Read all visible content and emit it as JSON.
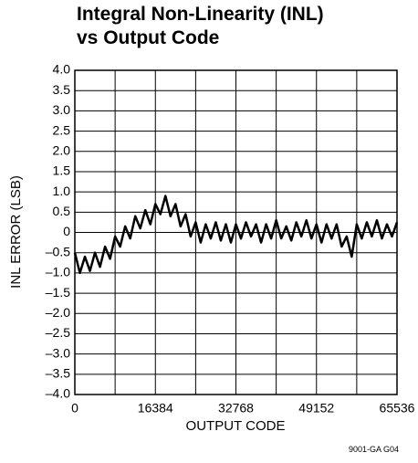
{
  "chart_data": {
    "type": "line",
    "title": [
      "Integral Non-Linearity (INL)",
      "vs Output Code"
    ],
    "xlabel": "OUTPUT CODE",
    "ylabel": "INL ERROR (LSB)",
    "footnote": "9001-GA G04",
    "xlim": [
      0,
      65536
    ],
    "ylim": [
      -4,
      4
    ],
    "xticks": [
      0,
      16384,
      32768,
      49152,
      65536
    ],
    "xgridlines": [
      0,
      8192,
      16384,
      24576,
      32768,
      40960,
      49152,
      57344,
      65536
    ],
    "yticks": [
      {
        "value": 4,
        "label": "4.0"
      },
      {
        "value": 3.5,
        "label": "3.5"
      },
      {
        "value": 3,
        "label": "3.0"
      },
      {
        "value": 2.5,
        "label": "2.5"
      },
      {
        "value": 2,
        "label": "2.0"
      },
      {
        "value": 1.5,
        "label": "1.5"
      },
      {
        "value": 1,
        "label": "1.0"
      },
      {
        "value": 0.5,
        "label": "0.5"
      },
      0,
      {
        "value": -0.5,
        "label": "–0.5"
      },
      {
        "value": -1,
        "label": "–1.0"
      },
      {
        "value": -1.5,
        "label": "–1.5"
      },
      {
        "value": -2,
        "label": "–2.0"
      },
      {
        "value": -2.5,
        "label": "–2.5"
      },
      {
        "value": -3,
        "label": "–3.0"
      },
      {
        "value": -3.5,
        "label": "–3.5"
      },
      {
        "value": -4,
        "label": "–4.0"
      }
    ],
    "grid": true,
    "series": [
      {
        "color": "#000000",
        "x": [
          0,
          1024,
          2048,
          3072,
          4096,
          5120,
          6144,
          7168,
          8192,
          9216,
          10240,
          11264,
          12288,
          13312,
          14336,
          15360,
          16384,
          17408,
          18432,
          19456,
          20480,
          21504,
          22528,
          23552,
          24576,
          25600,
          26624,
          27648,
          28672,
          29696,
          30720,
          31744,
          32768,
          33792,
          34816,
          35840,
          36864,
          37888,
          38912,
          39936,
          40960,
          41984,
          43008,
          44032,
          45056,
          46080,
          47104,
          48128,
          49152,
          50176,
          51200,
          52224,
          53248,
          54272,
          55296,
          56320,
          57344,
          58368,
          59392,
          60416,
          61440,
          62464,
          63488,
          64512,
          65536
        ],
        "values": [
          -0.5,
          -1.0,
          -0.6,
          -0.95,
          -0.5,
          -0.85,
          -0.35,
          -0.65,
          -0.1,
          -0.35,
          0.15,
          -0.15,
          0.4,
          0.1,
          0.55,
          0.2,
          0.7,
          0.45,
          0.9,
          0.4,
          0.7,
          0.15,
          0.45,
          -0.1,
          0.25,
          -0.25,
          0.2,
          -0.15,
          0.25,
          -0.2,
          0.2,
          -0.25,
          0.2,
          -0.15,
          0.25,
          -0.1,
          0.2,
          -0.25,
          0.2,
          -0.15,
          0.3,
          -0.15,
          0.15,
          -0.2,
          0.25,
          -0.1,
          0.3,
          -0.15,
          0.2,
          -0.25,
          0.2,
          -0.15,
          0.2,
          -0.35,
          -0.1,
          -0.6,
          0.2,
          -0.15,
          0.25,
          -0.1,
          0.3,
          -0.15,
          0.2,
          -0.1,
          0.25
        ]
      }
    ]
  }
}
